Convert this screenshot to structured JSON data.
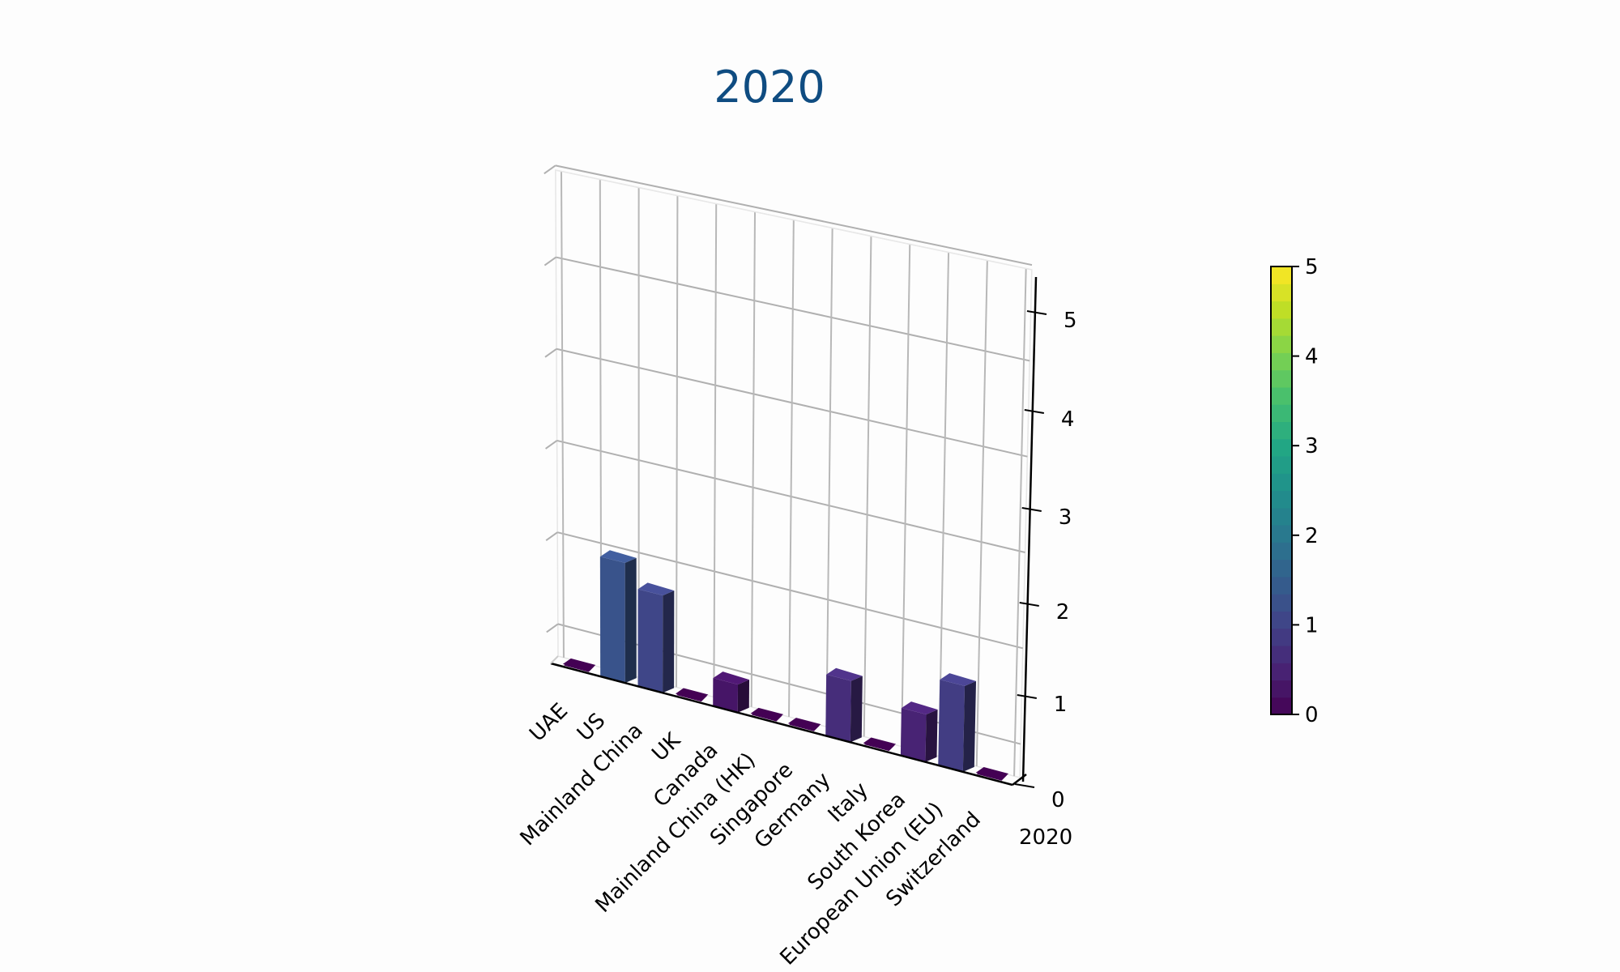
{
  "chart_data": {
    "type": "bar3d",
    "title": "2020",
    "title_color": "#0f4c81",
    "categories": [
      "UAE",
      "US",
      "Mainland China",
      "UK",
      "Canada",
      "Mainland China (HK)",
      "Singapore",
      "Germany",
      "Italy",
      "South Korea",
      "European Union (EU)",
      "Switzerland"
    ],
    "y_categories": [
      "2020"
    ],
    "values": [
      0,
      1.3,
      1.05,
      0,
      0.3,
      0,
      0,
      0.65,
      0,
      0.5,
      0.9,
      0
    ],
    "xlabel": "",
    "ylabel": "",
    "zlabel": "",
    "zlim": [
      0,
      5
    ],
    "z_ticks": [
      "0",
      "1",
      "2",
      "3",
      "4",
      "5"
    ],
    "grid": true,
    "colormap": "viridis",
    "colorbar": {
      "vmin": 0,
      "vmax": 5,
      "ticks": [
        "0",
        "1",
        "2",
        "3",
        "4",
        "5"
      ]
    }
  }
}
